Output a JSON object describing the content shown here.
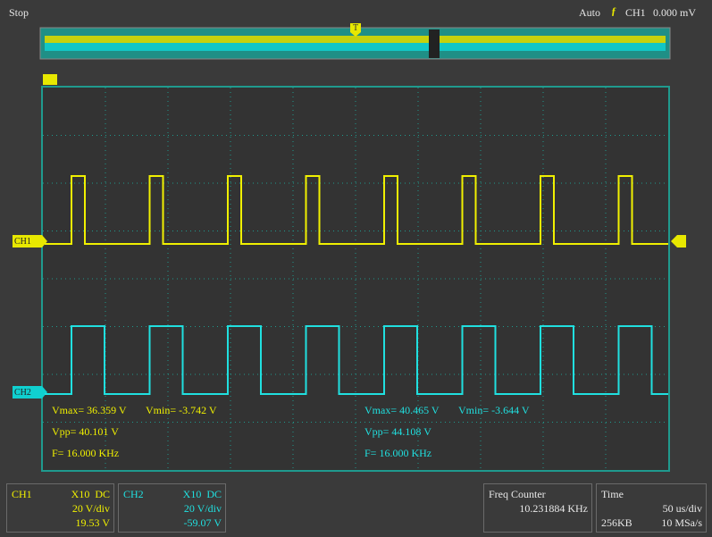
{
  "status": "Stop",
  "trigger": {
    "mode": "Auto",
    "source": "CH1",
    "level": "0.000 mV",
    "marker": "T"
  },
  "markers": {
    "ch1": "CH1",
    "ch2": "CH2"
  },
  "measurements": {
    "ch1": {
      "vmax": "Vmax= 36.359 V",
      "vmin": "Vmin= -3.742 V",
      "vpp": "Vpp= 40.101 V",
      "freq": "F= 16.000 KHz"
    },
    "ch2": {
      "vmax": "Vmax= 40.465 V",
      "vmin": "Vmin= -3.644 V",
      "vpp": "Vpp= 44.108 V",
      "freq": "F= 16.000 KHz"
    }
  },
  "panels": {
    "ch1": {
      "name": "CH1",
      "probe": "X10  DC",
      "scale": "20 V/div",
      "offset": "19.53 V"
    },
    "ch2": {
      "name": "CH2",
      "probe": "X10  DC",
      "scale": "20 V/div",
      "offset": "-59.07 V"
    },
    "freq_counter": {
      "title": "Freq Counter",
      "value": "10.231884 KHz"
    },
    "time": {
      "title": "Time",
      "scale": "50 us/div",
      "memory": "256KB",
      "rate": "10 MSa/s"
    }
  }
}
